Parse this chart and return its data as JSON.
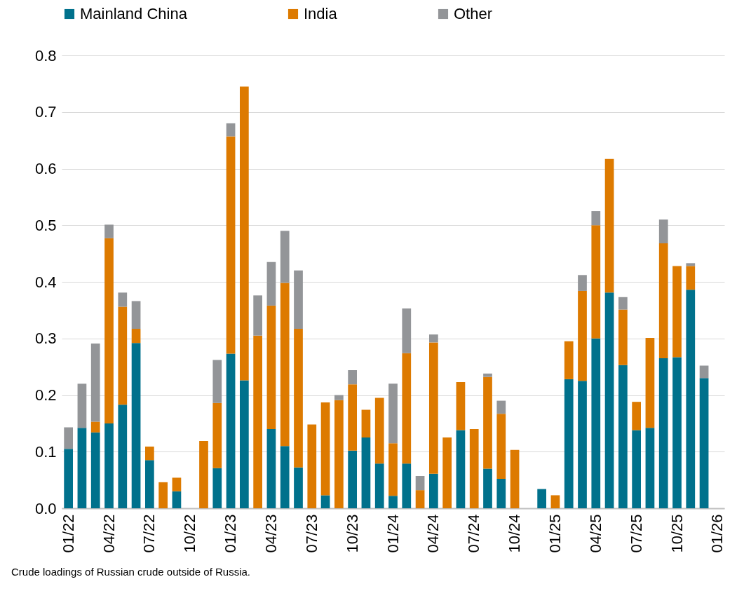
{
  "chart_data": {
    "type": "bar",
    "stacked": true,
    "grid": "y",
    "legend": "top",
    "categories": [
      "01/22",
      null,
      null,
      "04/22",
      null,
      null,
      "07/22",
      null,
      null,
      "10/22",
      null,
      null,
      "01/23",
      null,
      null,
      "04/23",
      null,
      null,
      "07/23",
      null,
      null,
      "10/23",
      null,
      null,
      "01/24",
      null,
      null,
      "04/24",
      null,
      null,
      "07/24",
      null,
      null,
      "10/24",
      null,
      null,
      "01/25",
      null,
      null,
      "04/25",
      null,
      null,
      "07/25",
      null,
      null,
      "10/25",
      null,
      null,
      "01/26"
    ],
    "series": [
      {
        "name": "Mainland China",
        "color": "#00718c",
        "values": [
          0.105,
          0.142,
          0.134,
          0.15,
          0.183,
          0.292,
          0.085,
          null,
          0.03,
          null,
          null,
          0.071,
          0.273,
          0.226,
          null,
          0.14,
          0.11,
          0.072,
          null,
          0.023,
          null,
          0.102,
          0.125,
          0.079,
          0.022,
          0.079,
          null,
          0.061,
          null,
          0.138,
          null,
          0.07,
          0.052,
          null,
          null,
          0.034,
          null,
          0.228,
          0.225,
          0.3,
          0.381,
          0.253,
          0.138,
          0.142,
          0.265,
          0.267,
          0.386,
          0.23,
          null
        ]
      },
      {
        "name": "India",
        "color": "#dd7a00",
        "values": [
          null,
          null,
          0.019,
          0.327,
          0.173,
          0.025,
          0.024,
          0.046,
          0.024,
          null,
          0.119,
          0.115,
          0.384,
          0.519,
          0.305,
          0.218,
          0.288,
          0.245,
          0.148,
          0.164,
          0.191,
          0.117,
          0.049,
          0.116,
          0.093,
          0.195,
          0.032,
          0.232,
          0.125,
          0.085,
          0.14,
          0.162,
          0.115,
          0.103,
          null,
          null,
          0.023,
          0.067,
          0.159,
          0.2,
          0.236,
          0.098,
          0.05,
          0.159,
          0.203,
          0.161,
          0.042,
          null,
          null
        ]
      },
      {
        "name": "Other",
        "color": "#939598",
        "values": [
          0.038,
          0.078,
          0.138,
          0.024,
          0.025,
          0.049,
          null,
          null,
          null,
          null,
          null,
          0.076,
          0.023,
          null,
          0.071,
          0.077,
          0.092,
          0.103,
          null,
          null,
          0.009,
          0.025,
          null,
          null,
          0.105,
          0.079,
          0.025,
          0.014,
          null,
          null,
          null,
          0.006,
          0.023,
          null,
          null,
          null,
          null,
          null,
          0.028,
          0.025,
          null,
          0.022,
          null,
          null,
          0.042,
          null,
          0.005,
          0.022,
          null
        ]
      }
    ],
    "ylim": [
      0,
      0.8
    ],
    "yticks": [
      {
        "value": 0,
        "label": "0.0"
      },
      0.1,
      0.2,
      0.3,
      0.4,
      0.5,
      0.6,
      0.7,
      0.8
    ],
    "annotations": [
      "Crude loadings of Russian crude outside of Russia."
    ]
  }
}
